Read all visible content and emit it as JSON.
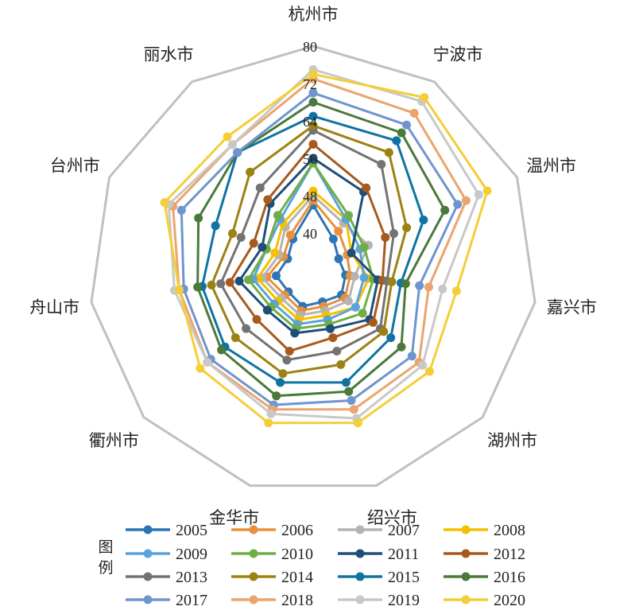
{
  "chart_data": {
    "type": "radar",
    "axes": [
      "杭州市",
      "宁波市",
      "温州市",
      "嘉兴市",
      "湖州市",
      "绍兴市",
      "金华市",
      "衢州市",
      "舟山市",
      "台州市",
      "丽水市"
    ],
    "rlim": [
      32,
      80
    ],
    "ticks": [
      40,
      48,
      56,
      64,
      72,
      80
    ],
    "legend_title": "图例",
    "legend_position": "bottom",
    "series": [
      {
        "name": "2005",
        "color": "#2e75b6",
        "values": [
          46,
          40,
          38,
          39,
          40,
          39,
          40,
          39,
          40,
          38,
          40
        ]
      },
      {
        "name": "2006",
        "color": "#e8903c",
        "values": [
          47,
          42,
          40,
          40,
          41,
          40,
          41,
          40,
          42,
          39,
          41
        ]
      },
      {
        "name": "2007",
        "color": "#b4b4b4",
        "values": [
          48,
          44,
          45,
          41,
          42,
          41,
          42,
          41,
          43,
          40,
          43
        ]
      },
      {
        "name": "2008",
        "color": "#f5c000",
        "values": [
          49,
          45,
          41,
          44,
          44,
          42,
          43,
          42,
          44,
          41,
          44
        ]
      },
      {
        "name": "2009",
        "color": "#5ba3d9",
        "values": [
          55,
          45,
          43,
          43,
          44,
          43,
          44,
          43,
          45,
          43,
          45
        ]
      },
      {
        "name": "2010",
        "color": "#70ad47",
        "values": [
          55,
          46,
          44,
          45,
          46,
          44,
          45,
          44,
          46,
          43,
          46
        ]
      },
      {
        "name": "2011",
        "color": "#1f4e79",
        "values": [
          56,
          52,
          41,
          46,
          48,
          45,
          46,
          45,
          48,
          44,
          49
        ]
      },
      {
        "name": "2012",
        "color": "#a85a1d",
        "values": [
          59,
          53,
          49,
          47,
          49,
          47,
          50,
          48,
          50,
          46,
          50
        ]
      },
      {
        "name": "2013",
        "color": "#737373",
        "values": [
          62,
          59,
          51,
          48,
          51,
          50,
          52,
          51,
          52,
          49,
          53
        ]
      },
      {
        "name": "2014",
        "color": "#9c8213",
        "values": [
          63,
          62,
          54,
          49,
          52,
          53,
          55,
          54,
          54,
          51,
          57
        ]
      },
      {
        "name": "2015",
        "color": "#0f73a3",
        "values": [
          65,
          65,
          58,
          51,
          54,
          57,
          57,
          57,
          56,
          55,
          62
        ]
      },
      {
        "name": "2016",
        "color": "#4a7a3a",
        "values": [
          68,
          67,
          63,
          52,
          57,
          59,
          60,
          58,
          57,
          59,
          62
        ]
      },
      {
        "name": "2017",
        "color": "#6f95cf",
        "values": [
          70,
          69,
          66,
          55,
          60,
          61,
          62,
          61,
          60,
          63,
          62
        ]
      },
      {
        "name": "2018",
        "color": "#eba46d",
        "values": [
          73,
          72,
          68,
          57,
          62,
          63,
          63,
          62,
          61,
          65,
          64
        ]
      },
      {
        "name": "2019",
        "color": "#c8c8c8",
        "values": [
          75,
          75,
          71,
          60,
          63,
          65,
          64,
          62,
          62,
          66,
          64
        ]
      },
      {
        "name": "2020",
        "color": "#f4ce38",
        "values": [
          74,
          76,
          73,
          63,
          65,
          66,
          66,
          64,
          61,
          67,
          66
        ]
      }
    ]
  }
}
